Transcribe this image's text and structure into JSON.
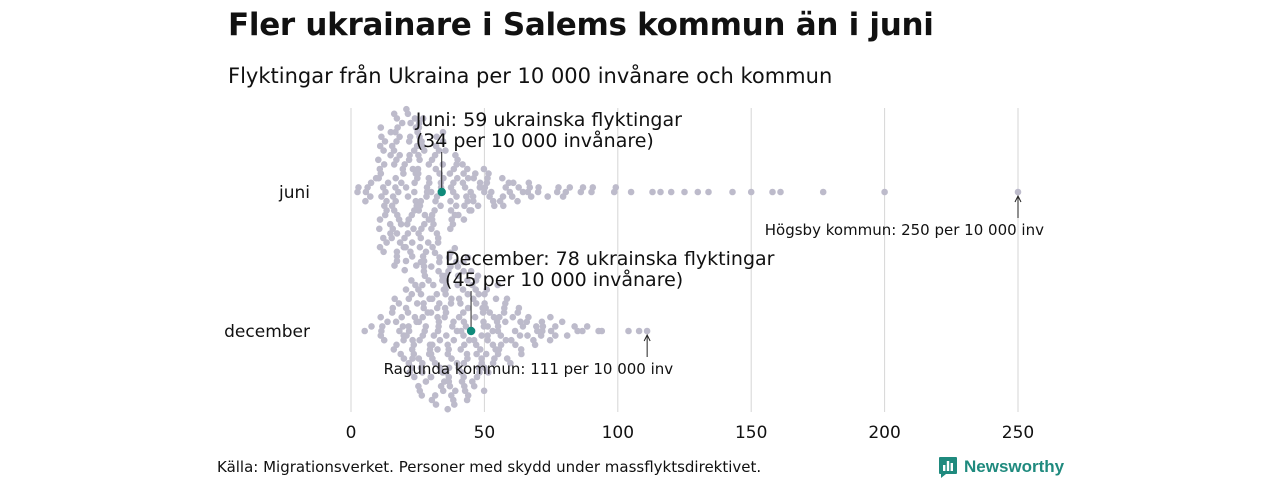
{
  "title": "Fler ukrainare i Salems kommun än i juni",
  "subtitle": "Flyktingar från Ukraina per 10 000 invånare och kommun",
  "source": "Källa: Migrationsverket. Personer med skydd under massflyktsdirektivet.",
  "brand": {
    "name": "Newsworthy",
    "icon": "bar-chart-logo-icon",
    "color": "#1f8a7e"
  },
  "colors": {
    "dot": "#bdbbcb",
    "highlight": "#0f8a7a",
    "grid": "#d6d6d6",
    "text": "#111111"
  },
  "chart_data": {
    "type": "scatter",
    "subtype": "beeswarm",
    "xlim": [
      0,
      250
    ],
    "x_ticks": [
      "0",
      "50",
      "100",
      "150",
      "200",
      "250"
    ],
    "x_tick_values": [
      0,
      50,
      100,
      150,
      200,
      250
    ],
    "grid": true,
    "categories": [
      "juni",
      "december"
    ],
    "series": [
      {
        "category": "juni",
        "distribution": [
          [
            0,
            2
          ],
          [
            5,
            6
          ],
          [
            10,
            28
          ],
          [
            15,
            34
          ],
          [
            20,
            36
          ],
          [
            25,
            32
          ],
          [
            30,
            26
          ],
          [
            35,
            18
          ],
          [
            40,
            13
          ],
          [
            45,
            10
          ],
          [
            50,
            8
          ],
          [
            55,
            7
          ],
          [
            60,
            5
          ],
          [
            65,
            4
          ],
          [
            70,
            3
          ],
          [
            75,
            3
          ],
          [
            80,
            2
          ],
          [
            85,
            2
          ],
          [
            90,
            2
          ],
          [
            95,
            2
          ]
        ],
        "outliers": [
          105,
          113,
          116,
          120,
          125,
          130,
          134,
          143,
          150,
          158,
          161,
          177,
          200,
          250
        ],
        "highlight": {
          "value": 34,
          "label_line1": "Juni: 59 ukrainska flyktingar",
          "label_line2": "(34 per 10 000 invånare)"
        },
        "max_annotation": {
          "value": 250,
          "label": "Högsby kommun: 250 per 10 000 inv"
        }
      },
      {
        "category": "december",
        "distribution": [
          [
            5,
            2
          ],
          [
            10,
            6
          ],
          [
            15,
            14
          ],
          [
            20,
            22
          ],
          [
            25,
            30
          ],
          [
            30,
            34
          ],
          [
            35,
            36
          ],
          [
            40,
            32
          ],
          [
            45,
            27
          ],
          [
            50,
            20
          ],
          [
            55,
            15
          ],
          [
            60,
            11
          ],
          [
            65,
            7
          ],
          [
            70,
            6
          ],
          [
            75,
            4
          ],
          [
            80,
            3
          ],
          [
            85,
            2
          ],
          [
            90,
            1
          ]
        ],
        "outliers": [
          94,
          104,
          108,
          111
        ],
        "highlight": {
          "value": 45,
          "label_line1": "December: 78 ukrainska flyktingar",
          "label_line2": "(45 per 10 000 invånare)"
        },
        "max_annotation": {
          "value": 111,
          "label": "Ragunda kommun: 111 per 10 000 inv"
        }
      }
    ]
  }
}
